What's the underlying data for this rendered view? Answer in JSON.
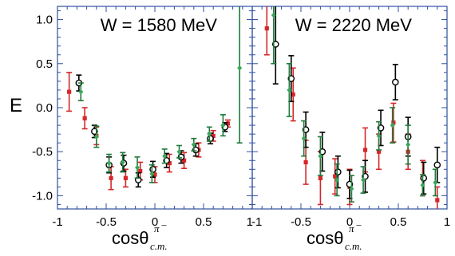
{
  "figure": {
    "y_axis_label": "E",
    "x_axis_label_main": "cosθ",
    "x_axis_label_sub": "c.m.",
    "x_axis_label_sup": "π",
    "x_axis_label_sup_minus": "−"
  },
  "colors": {
    "frame": "#2f4f9f",
    "black": "#000000",
    "red": "#d62728",
    "green": "#1f7a3a",
    "green_marker": "#3aa65a"
  },
  "chart_data": [
    {
      "type": "scatter",
      "title": "W = 1580 MeV",
      "xlim": [
        -1,
        1
      ],
      "ylim": [
        -1.15,
        1.15
      ],
      "x_ticks": [
        -1,
        -0.5,
        0,
        0.5,
        1
      ],
      "x_tick_labels": [
        "-1",
        "-0.5",
        "0",
        "0.5",
        "1"
      ],
      "y_ticks": [
        1.0,
        0.5,
        0.0,
        -0.5,
        -1.0
      ],
      "y_tick_labels": [
        "1.0",
        "0.5",
        "0.0",
        "-0.5",
        "-1.0"
      ],
      "series": [
        {
          "color": "red",
          "marker": "square-filled",
          "points": [
            {
              "x": -0.88,
              "y": 0.18,
              "err": 0.22
            },
            {
              "x": -0.72,
              "y": -0.12,
              "err": 0.12
            },
            {
              "x": -0.6,
              "y": -0.32,
              "err": 0.1
            },
            {
              "x": -0.45,
              "y": -0.8,
              "err": 0.13
            },
            {
              "x": -0.3,
              "y": -0.8,
              "err": 0.1
            },
            {
              "x": -0.15,
              "y": -0.72,
              "err": 0.1
            },
            {
              "x": 0.0,
              "y": -0.76,
              "err": 0.09
            },
            {
              "x": 0.15,
              "y": -0.63,
              "err": 0.1
            },
            {
              "x": 0.3,
              "y": -0.6,
              "err": 0.09
            },
            {
              "x": 0.45,
              "y": -0.48,
              "err": 0.08
            },
            {
              "x": 0.6,
              "y": -0.32,
              "err": 0.06
            },
            {
              "x": 0.75,
              "y": -0.18,
              "err": 0.04
            }
          ]
        },
        {
          "color": "black",
          "marker": "circle-open",
          "points": [
            {
              "x": -0.78,
              "y": 0.28,
              "err": 0.09
            },
            {
              "x": -0.62,
              "y": -0.27,
              "err": 0.07
            },
            {
              "x": -0.47,
              "y": -0.65,
              "err": 0.09
            },
            {
              "x": -0.32,
              "y": -0.63,
              "err": 0.09
            },
            {
              "x": -0.17,
              "y": -0.82,
              "err": 0.08
            },
            {
              "x": -0.02,
              "y": -0.7,
              "err": 0.09
            },
            {
              "x": 0.12,
              "y": -0.6,
              "err": 0.08
            },
            {
              "x": 0.27,
              "y": -0.56,
              "err": 0.07
            },
            {
              "x": 0.42,
              "y": -0.48,
              "err": 0.07
            },
            {
              "x": 0.57,
              "y": -0.35,
              "err": 0.06
            },
            {
              "x": 0.72,
              "y": -0.22,
              "err": 0.05
            }
          ]
        },
        {
          "color": "green",
          "marker": "diamond-filled",
          "points": [
            {
              "x": -0.76,
              "y": 0.18,
              "err": 0.1
            },
            {
              "x": -0.6,
              "y": -0.33,
              "err": 0.12
            },
            {
              "x": -0.47,
              "y": -0.63,
              "err": 0.1
            },
            {
              "x": -0.33,
              "y": -0.62,
              "err": 0.11
            },
            {
              "x": -0.18,
              "y": -0.68,
              "err": 0.12
            },
            {
              "x": -0.03,
              "y": -0.75,
              "err": 0.1
            },
            {
              "x": 0.1,
              "y": -0.55,
              "err": 0.08
            },
            {
              "x": 0.25,
              "y": -0.5,
              "err": 0.07
            },
            {
              "x": 0.4,
              "y": -0.42,
              "err": 0.07
            },
            {
              "x": 0.56,
              "y": -0.3,
              "err": 0.08
            },
            {
              "x": 0.7,
              "y": -0.2,
              "err": 0.12
            },
            {
              "x": 0.87,
              "y": 0.45,
              "err": 0.85
            }
          ]
        }
      ]
    },
    {
      "type": "scatter",
      "title": "W = 2220 MeV",
      "xlim": [
        -1,
        1
      ],
      "ylim": [
        -1.15,
        1.15
      ],
      "x_ticks": [
        -1,
        -0.5,
        0,
        0.5,
        1
      ],
      "x_tick_labels": [
        "-1",
        "-0.5",
        "0",
        "0.5",
        "1"
      ],
      "y_ticks": [
        1.0,
        0.5,
        0.0,
        -0.5,
        -1.0
      ],
      "y_tick_labels": [],
      "series": [
        {
          "color": "red",
          "marker": "square-filled",
          "points": [
            {
              "x": -0.85,
              "y": 0.9,
              "err": 0.3
            },
            {
              "x": -0.58,
              "y": 0.15,
              "err": 0.3
            },
            {
              "x": -0.45,
              "y": -0.62,
              "err": 0.25
            },
            {
              "x": -0.3,
              "y": -0.8,
              "err": 0.3
            },
            {
              "x": -0.15,
              "y": -0.78,
              "err": 0.2
            },
            {
              "x": 0.0,
              "y": -0.9,
              "err": 0.2
            },
            {
              "x": 0.16,
              "y": -0.48,
              "err": 0.25
            },
            {
              "x": 0.3,
              "y": -0.5,
              "err": 0.2
            },
            {
              "x": 0.45,
              "y": -0.17,
              "err": 0.22
            },
            {
              "x": 0.6,
              "y": -0.5,
              "err": 0.2
            },
            {
              "x": 0.75,
              "y": -0.8,
              "err": 0.2
            },
            {
              "x": 0.9,
              "y": -1.05,
              "err": 0.15
            }
          ]
        },
        {
          "color": "black",
          "marker": "circle-open",
          "points": [
            {
              "x": -0.76,
              "y": 0.72,
              "err": 0.45
            },
            {
              "x": -0.6,
              "y": 0.33,
              "err": 0.26
            },
            {
              "x": -0.45,
              "y": -0.25,
              "err": 0.2
            },
            {
              "x": -0.28,
              "y": -0.5,
              "err": 0.22
            },
            {
              "x": -0.12,
              "y": -0.73,
              "err": 0.18
            },
            {
              "x": 0.0,
              "y": -0.87,
              "err": 0.16
            },
            {
              "x": 0.16,
              "y": -0.78,
              "err": 0.18
            },
            {
              "x": 0.32,
              "y": -0.23,
              "err": 0.2
            },
            {
              "x": 0.47,
              "y": 0.29,
              "err": 0.2
            },
            {
              "x": 0.6,
              "y": -0.33,
              "err": 0.22
            },
            {
              "x": 0.76,
              "y": -0.8,
              "err": 0.18
            },
            {
              "x": 0.9,
              "y": -0.65,
              "err": 0.2
            }
          ]
        },
        {
          "color": "green",
          "marker": "diamond-filled",
          "points": [
            {
              "x": -0.78,
              "y": 1.05,
              "err": 0.55
            },
            {
              "x": -0.62,
              "y": 0.2,
              "err": 0.3
            },
            {
              "x": -0.47,
              "y": -0.35,
              "err": 0.2
            },
            {
              "x": -0.3,
              "y": -0.55,
              "err": 0.22
            },
            {
              "x": -0.13,
              "y": -0.82,
              "err": 0.18
            },
            {
              "x": 0.02,
              "y": -0.92,
              "err": 0.15
            },
            {
              "x": 0.14,
              "y": -0.82,
              "err": 0.15
            },
            {
              "x": 0.3,
              "y": -0.32,
              "err": 0.16
            },
            {
              "x": 0.44,
              "y": -0.2,
              "err": 0.2
            },
            {
              "x": 0.6,
              "y": -0.42,
              "err": 0.22
            },
            {
              "x": 0.75,
              "y": -0.88,
              "err": 0.12
            },
            {
              "x": 0.88,
              "y": -0.85,
              "err": 0.15
            }
          ]
        }
      ]
    }
  ]
}
